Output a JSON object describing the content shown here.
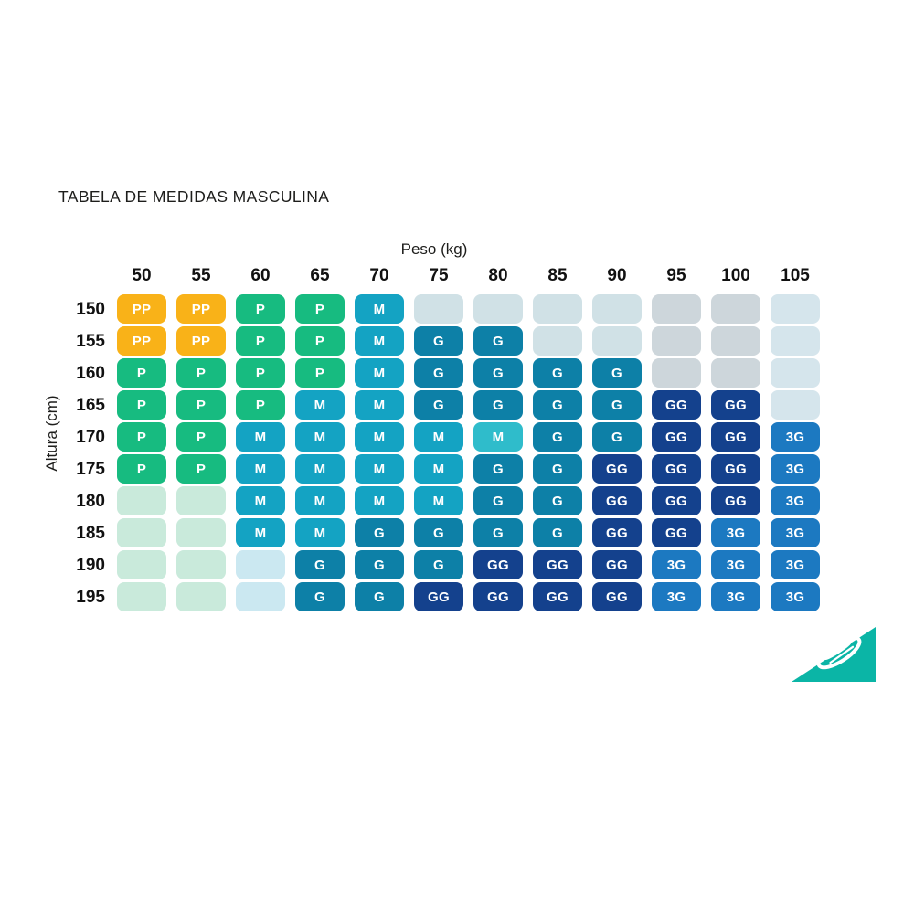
{
  "title": "TABELA DE MEDIDAS MASCULINA",
  "chart_data": {
    "type": "heatmap",
    "title": "TABELA DE MEDIDAS MASCULINA",
    "xlabel": "Peso (kg)",
    "ylabel": "Altura (cm)",
    "columns": [
      "50",
      "55",
      "60",
      "65",
      "70",
      "75",
      "80",
      "85",
      "90",
      "95",
      "100",
      "105"
    ],
    "rows": [
      "150",
      "155",
      "160",
      "165",
      "170",
      "175",
      "180",
      "185",
      "190",
      "195"
    ],
    "palette": {
      "PP": {
        "label": "PP",
        "bg": "#F9B218",
        "fg": "#ffffff"
      },
      "P": {
        "label": "P",
        "bg": "#17BB80",
        "fg": "#ffffff"
      },
      "M": {
        "label": "M",
        "bg": "#14A3C3",
        "fg": "#ffffff"
      },
      "M2": {
        "label": "M",
        "bg": "#2FBCCB",
        "fg": "#ffffff"
      },
      "G": {
        "label": "G",
        "bg": "#0D80A7",
        "fg": "#ffffff"
      },
      "GG": {
        "label": "GG",
        "bg": "#14418D",
        "fg": "#ffffff"
      },
      "3G": {
        "label": "3G",
        "bg": "#1C79C1",
        "fg": "#ffffff"
      },
      "eb": {
        "label": "",
        "bg": "#D0E1E6",
        "fg": "#ffffff"
      },
      "eg": {
        "label": "",
        "bg": "#CDD6DB",
        "fg": "#ffffff"
      },
      "eu": {
        "label": "",
        "bg": "#D5E5EC",
        "fg": "#ffffff"
      },
      "en": {
        "label": "",
        "bg": "#C9EADB",
        "fg": "#ffffff"
      },
      "ec": {
        "label": "",
        "bg": "#CBE8F1",
        "fg": "#ffffff"
      }
    },
    "grid": [
      [
        "PP",
        "PP",
        "P",
        "P",
        "M",
        "eb",
        "eb",
        "eb",
        "eb",
        "eg",
        "eg",
        "eu"
      ],
      [
        "PP",
        "PP",
        "P",
        "P",
        "M",
        "G",
        "G",
        "eb",
        "eb",
        "eg",
        "eg",
        "eu"
      ],
      [
        "P",
        "P",
        "P",
        "P",
        "M",
        "G",
        "G",
        "G",
        "G",
        "eg",
        "eg",
        "eu"
      ],
      [
        "P",
        "P",
        "P",
        "M",
        "M",
        "G",
        "G",
        "G",
        "G",
        "GG",
        "GG",
        "eu"
      ],
      [
        "P",
        "P",
        "M",
        "M",
        "M",
        "M",
        "M2",
        "G",
        "G",
        "GG",
        "GG",
        "3G"
      ],
      [
        "P",
        "P",
        "M",
        "M",
        "M",
        "M",
        "G",
        "G",
        "GG",
        "GG",
        "GG",
        "3G"
      ],
      [
        "en",
        "en",
        "M",
        "M",
        "M",
        "M",
        "G",
        "G",
        "GG",
        "GG",
        "GG",
        "3G"
      ],
      [
        "en",
        "en",
        "M",
        "M",
        "G",
        "G",
        "G",
        "G",
        "GG",
        "GG",
        "3G",
        "3G"
      ],
      [
        "en",
        "en",
        "ec",
        "G",
        "G",
        "G",
        "GG",
        "GG",
        "GG",
        "3G",
        "3G",
        "3G"
      ],
      [
        "en",
        "en",
        "ec",
        "G",
        "G",
        "GG",
        "GG",
        "GG",
        "GG",
        "3G",
        "3G",
        "3G"
      ]
    ],
    "legend_position": "none",
    "grid_lines": false
  },
  "logo": {
    "name": "mormaii-triangle-logo",
    "triangle_color": "#0BB5A6",
    "mark_color": "#ffffff"
  }
}
